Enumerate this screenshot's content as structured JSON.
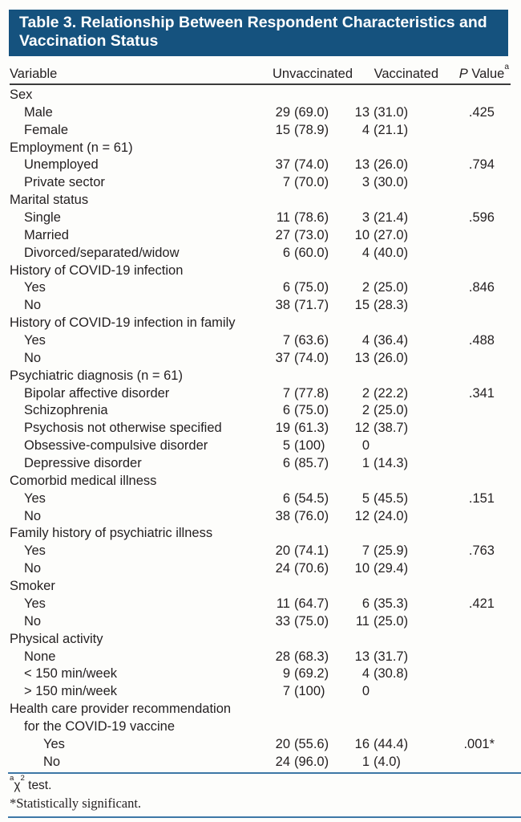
{
  "title": {
    "line1": "Table 3. Relationship Between Respondent Characteristics and",
    "line2": "Vaccination Status"
  },
  "columns": {
    "variable": "Variable",
    "unvaccinated": "Unvaccinated",
    "vaccinated": "Vaccinated",
    "p_name": "P",
    "p_rest": " Value",
    "p_sup": "a"
  },
  "colors": {
    "header_bg": "#15527e",
    "rule_blue": "#3d77a6",
    "rule_dark": "#3b3b3b",
    "text": "#231f20"
  },
  "rows": [
    {
      "label": "Sex",
      "indent": 0
    },
    {
      "label": "Male",
      "indent": 1,
      "u_n": "29",
      "u_pct": "(69.0)",
      "v_n": "13",
      "v_pct": "(31.0)",
      "p": ".425"
    },
    {
      "label": "Female",
      "indent": 1,
      "u_n": "15",
      "u_pct": "(78.9)",
      "v_n": "4",
      "v_pct": "(21.1)",
      "p": ""
    },
    {
      "label": "Employment (n = 61)",
      "indent": 0
    },
    {
      "label": "Unemployed",
      "indent": 1,
      "u_n": "37",
      "u_pct": "(74.0)",
      "v_n": "13",
      "v_pct": "(26.0)",
      "p": ".794"
    },
    {
      "label": "Private sector",
      "indent": 1,
      "u_n": "7",
      "u_pct": "(70.0)",
      "v_n": "3",
      "v_pct": "(30.0)",
      "p": ""
    },
    {
      "label": "Marital status",
      "indent": 0
    },
    {
      "label": "Single",
      "indent": 1,
      "u_n": "11",
      "u_pct": "(78.6)",
      "v_n": "3",
      "v_pct": "(21.4)",
      "p": ".596"
    },
    {
      "label": "Married",
      "indent": 1,
      "u_n": "27",
      "u_pct": "(73.0)",
      "v_n": "10",
      "v_pct": "(27.0)",
      "p": ""
    },
    {
      "label": "Divorced/separated/widow",
      "indent": 1,
      "u_n": "6",
      "u_pct": "(60.0)",
      "v_n": "4",
      "v_pct": "(40.0)",
      "p": ""
    },
    {
      "label": "History of COVID-19 infection",
      "indent": 0
    },
    {
      "label": "Yes",
      "indent": 1,
      "u_n": "6",
      "u_pct": "(75.0)",
      "v_n": "2",
      "v_pct": "(25.0)",
      "p": ".846"
    },
    {
      "label": "No",
      "indent": 1,
      "u_n": "38",
      "u_pct": "(71.7)",
      "v_n": "15",
      "v_pct": "(28.3)",
      "p": ""
    },
    {
      "label": "History of COVID-19 infection in family",
      "indent": 0
    },
    {
      "label": "Yes",
      "indent": 1,
      "u_n": "7",
      "u_pct": "(63.6)",
      "v_n": "4",
      "v_pct": "(36.4)",
      "p": ".488"
    },
    {
      "label": "No",
      "indent": 1,
      "u_n": "37",
      "u_pct": "(74.0)",
      "v_n": "13",
      "v_pct": "(26.0)",
      "p": ""
    },
    {
      "label": "Psychiatric diagnosis (n = 61)",
      "indent": 0
    },
    {
      "label": "Bipolar affective disorder",
      "indent": 1,
      "u_n": "7",
      "u_pct": "(77.8)",
      "v_n": "2",
      "v_pct": "(22.2)",
      "p": ".341"
    },
    {
      "label": "Schizophrenia",
      "indent": 1,
      "u_n": "6",
      "u_pct": "(75.0)",
      "v_n": "2",
      "v_pct": "(25.0)",
      "p": ""
    },
    {
      "label": "Psychosis not otherwise specified",
      "indent": 1,
      "u_n": "19",
      "u_pct": "(61.3)",
      "v_n": "12",
      "v_pct": "(38.7)",
      "p": ""
    },
    {
      "label": "Obsessive-compulsive disorder",
      "indent": 1,
      "u_n": "5",
      "u_pct": "(100)",
      "v_n": "0",
      "v_pct": "",
      "p": ""
    },
    {
      "label": "Depressive disorder",
      "indent": 1,
      "u_n": "6",
      "u_pct": "(85.7)",
      "v_n": "1",
      "v_pct": "(14.3)",
      "p": ""
    },
    {
      "label": "Comorbid medical illness",
      "indent": 0
    },
    {
      "label": "Yes",
      "indent": 1,
      "u_n": "6",
      "u_pct": "(54.5)",
      "v_n": "5",
      "v_pct": "(45.5)",
      "p": ".151"
    },
    {
      "label": "No",
      "indent": 1,
      "u_n": "38",
      "u_pct": "(76.0)",
      "v_n": "12",
      "v_pct": "(24.0)",
      "p": ""
    },
    {
      "label": "Family history of psychiatric illness",
      "indent": 0
    },
    {
      "label": "Yes",
      "indent": 1,
      "u_n": "20",
      "u_pct": "(74.1)",
      "v_n": "7",
      "v_pct": "(25.9)",
      "p": ".763"
    },
    {
      "label": "No",
      "indent": 1,
      "u_n": "24",
      "u_pct": "(70.6)",
      "v_n": "10",
      "v_pct": "(29.4)",
      "p": ""
    },
    {
      "label": "Smoker",
      "indent": 0
    },
    {
      "label": "Yes",
      "indent": 1,
      "u_n": "11",
      "u_pct": "(64.7)",
      "v_n": "6",
      "v_pct": "(35.3)",
      "p": ".421"
    },
    {
      "label": "No",
      "indent": 1,
      "u_n": "33",
      "u_pct": "(75.0)",
      "v_n": "11",
      "v_pct": "(25.0)",
      "p": ""
    },
    {
      "label": "Physical activity",
      "indent": 0
    },
    {
      "label": "None",
      "indent": 1,
      "u_n": "28",
      "u_pct": "(68.3)",
      "v_n": "13",
      "v_pct": "(31.7)",
      "p": ""
    },
    {
      "label": "< 150 min/week",
      "indent": 1,
      "u_n": "9",
      "u_pct": "(69.2)",
      "v_n": "4",
      "v_pct": "(30.8)",
      "p": ""
    },
    {
      "label": "> 150 min/week",
      "indent": 1,
      "u_n": "7",
      "u_pct": "(100)",
      "v_n": "0",
      "v_pct": "",
      "p": ""
    },
    {
      "label": "Health care provider recommendation",
      "indent": 0
    },
    {
      "label": "for the COVID-19 vaccine",
      "indent": 1
    },
    {
      "label": "Yes",
      "indent": 2,
      "u_n": "20",
      "u_pct": "(55.6)",
      "v_n": "16",
      "v_pct": "(44.4)",
      "p": ".001*"
    },
    {
      "label": "No",
      "indent": 2,
      "u_n": "24",
      "u_pct": "(96.0)",
      "v_n": "1",
      "v_pct": "(4.0)",
      "p": ""
    }
  ],
  "footnotes": {
    "chi_marker": "a",
    "chi_symbol": "χ",
    "chi_exponent": "2",
    "chi_text": " test.",
    "significance": "*Statistically significant."
  }
}
